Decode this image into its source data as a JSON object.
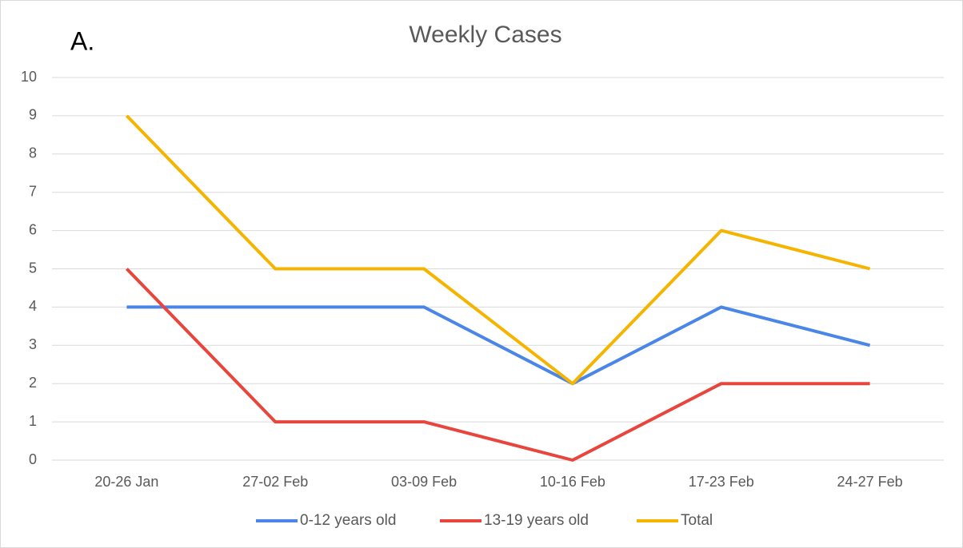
{
  "chart_data": {
    "type": "line",
    "title": "Weekly Cases",
    "annotation": "A.",
    "categories": [
      "20-26 Jan",
      "27-02 Feb",
      "03-09 Feb",
      "10-16 Feb",
      "17-23 Feb",
      "24-27 Feb"
    ],
    "series": [
      {
        "name": "0-12 years old",
        "color": "#4a86e8",
        "values": [
          4,
          4,
          4,
          2,
          4,
          3
        ]
      },
      {
        "name": "13-19 years old",
        "color": "#e8453c",
        "values": [
          5,
          1,
          1,
          0,
          2,
          2
        ]
      },
      {
        "name": "Total",
        "color": "#f4b400",
        "values": [
          9,
          5,
          5,
          2,
          6,
          5
        ]
      }
    ],
    "ylim": [
      0,
      10
    ],
    "yticks": [
      0,
      1,
      2,
      3,
      4,
      5,
      6,
      7,
      8,
      9,
      10
    ],
    "grid": true,
    "legend": "bottom"
  }
}
